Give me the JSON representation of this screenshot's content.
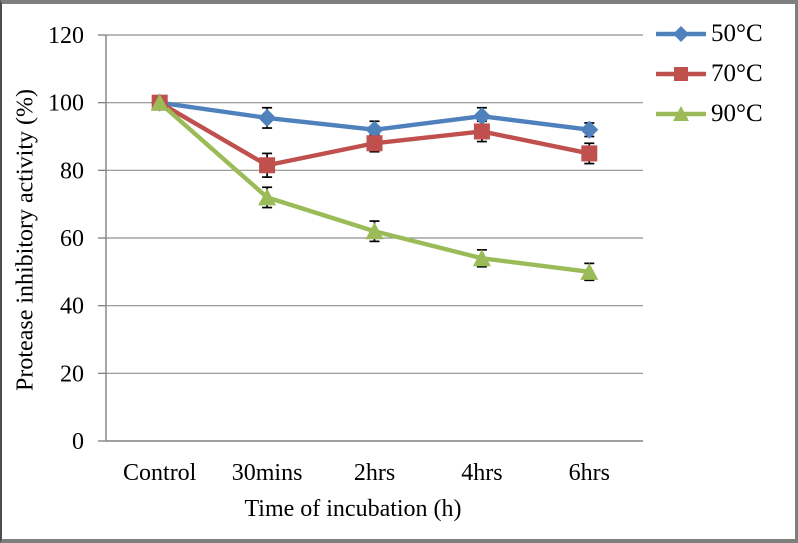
{
  "chart_data": {
    "type": "line",
    "title": "",
    "categories": [
      "Control",
      "30mins",
      "2hrs",
      "4hrs",
      "6hrs"
    ],
    "series": [
      {
        "name": "50°C",
        "color": "#4f81bd",
        "marker": "diamond",
        "values": [
          100,
          95.5,
          92,
          96,
          92
        ],
        "errors": [
          0,
          3,
          2.5,
          2.5,
          2
        ]
      },
      {
        "name": "70°C",
        "color": "#c0504d",
        "marker": "square",
        "values": [
          100,
          81.5,
          88,
          91.5,
          85
        ],
        "errors": [
          0,
          3.5,
          2.5,
          3,
          3
        ]
      },
      {
        "name": "90°C",
        "color": "#9bbb59",
        "marker": "triangle",
        "values": [
          100,
          72,
          62,
          54,
          50
        ],
        "errors": [
          0,
          3,
          3,
          2.5,
          2.5
        ]
      }
    ],
    "xlabel": "Time of incubation (h)",
    "ylabel": "Protease inhibitory activity (%)",
    "ylim": [
      0,
      120
    ],
    "ytick_step": 20,
    "grid": true,
    "legend_position": "right",
    "gridline_color": "#909090",
    "axis_color": "#808080",
    "error_bar_color": "#000000",
    "text_color": "#000000"
  }
}
